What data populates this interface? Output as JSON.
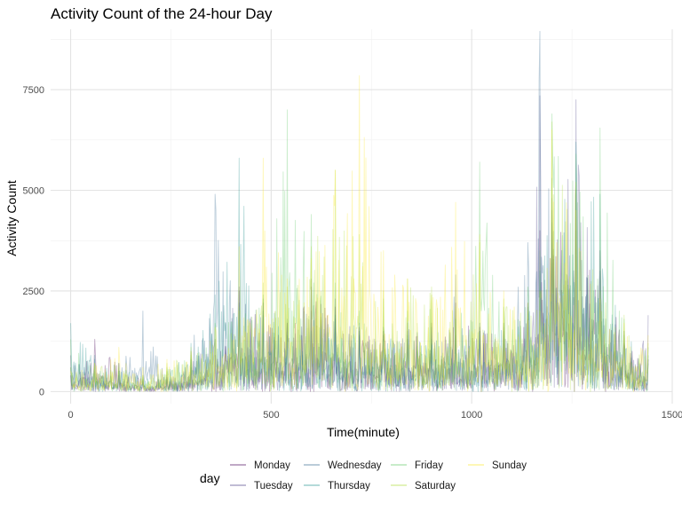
{
  "chart_data": {
    "type": "line",
    "title": "Activity Count of the 24-hour Day",
    "xlabel": "Time(minute)",
    "ylabel": "Activity Count",
    "xlim": [
      -50,
      1500
    ],
    "ylim": [
      -300,
      9000
    ],
    "x_ticks": [
      {
        "value": 0,
        "label": "0"
      },
      {
        "value": 500,
        "label": "500"
      },
      {
        "value": 1000,
        "label": "1000"
      },
      {
        "value": 1500,
        "label": "1500"
      }
    ],
    "y_ticks": [
      {
        "value": 0,
        "label": "0"
      },
      {
        "value": 2500,
        "label": "2500"
      },
      {
        "value": 5000,
        "label": "5000"
      },
      {
        "value": 7500,
        "label": "7500"
      }
    ],
    "grid": true,
    "legend": {
      "title": "day",
      "position": "bottom",
      "rows": 2
    },
    "series": [
      {
        "name": "Monday",
        "color": "#440154",
        "x": [
          0,
          60,
          120,
          180,
          240,
          300,
          360,
          420,
          480,
          540,
          600,
          660,
          720,
          780,
          840,
          900,
          960,
          1020,
          1080,
          1140,
          1170,
          1200,
          1260,
          1320,
          1380,
          1440
        ],
        "values": [
          400,
          1300,
          700,
          300,
          350,
          600,
          900,
          2500,
          2200,
          1700,
          2600,
          2100,
          1600,
          1500,
          1300,
          1700,
          2200,
          1600,
          1500,
          1800,
          4000,
          4500,
          5000,
          3500,
          1200,
          800
        ]
      },
      {
        "name": "Tuesday",
        "color": "#443a83",
        "x": [
          0,
          60,
          120,
          180,
          240,
          300,
          360,
          420,
          480,
          540,
          600,
          660,
          720,
          780,
          840,
          900,
          960,
          1020,
          1080,
          1140,
          1170,
          1200,
          1260,
          1320,
          1380,
          1440
        ],
        "values": [
          900,
          500,
          400,
          250,
          400,
          800,
          1300,
          2600,
          1900,
          1700,
          2000,
          2300,
          1500,
          1400,
          1700,
          1600,
          1400,
          1500,
          1700,
          2200,
          7350,
          4200,
          7250,
          3000,
          1500,
          1900
        ]
      },
      {
        "name": "Wednesday",
        "color": "#31688e",
        "x": [
          0,
          60,
          120,
          180,
          240,
          300,
          360,
          420,
          480,
          540,
          600,
          660,
          720,
          780,
          840,
          900,
          960,
          1020,
          1080,
          1140,
          1170,
          1200,
          1260,
          1320,
          1380,
          1440
        ],
        "values": [
          600,
          800,
          500,
          2000,
          300,
          1000,
          4900,
          2200,
          2000,
          1400,
          2800,
          1800,
          1400,
          1300,
          1500,
          1200,
          2900,
          1700,
          1600,
          3700,
          8950,
          4800,
          4000,
          2200,
          1400,
          700
        ]
      },
      {
        "name": "Thursday",
        "color": "#21908d",
        "x": [
          0,
          60,
          120,
          180,
          240,
          300,
          360,
          420,
          480,
          540,
          600,
          660,
          720,
          780,
          840,
          900,
          960,
          1020,
          1080,
          1140,
          1170,
          1200,
          1260,
          1320,
          1380,
          1440
        ],
        "values": [
          1700,
          900,
          700,
          400,
          500,
          1200,
          2400,
          5800,
          2300,
          1800,
          1500,
          1900,
          1700,
          1600,
          1400,
          1300,
          1800,
          1500,
          1700,
          2100,
          3000,
          5300,
          6200,
          4900,
          1500,
          900
        ]
      },
      {
        "name": "Friday",
        "color": "#5dc863",
        "x": [
          0,
          60,
          120,
          180,
          240,
          300,
          360,
          420,
          480,
          540,
          600,
          660,
          720,
          780,
          840,
          900,
          960,
          1020,
          1080,
          1140,
          1170,
          1200,
          1260,
          1320,
          1380,
          1440
        ],
        "values": [
          1300,
          600,
          500,
          350,
          600,
          900,
          1700,
          2100,
          2400,
          7000,
          4400,
          2700,
          2000,
          2300,
          2000,
          2400,
          1800,
          5700,
          2100,
          2600,
          3500,
          6900,
          5900,
          6550,
          1800,
          1100
        ]
      },
      {
        "name": "Saturday",
        "color": "#aadc32",
        "x": [
          0,
          60,
          120,
          180,
          240,
          300,
          360,
          420,
          480,
          540,
          600,
          660,
          720,
          780,
          840,
          900,
          960,
          1020,
          1080,
          1140,
          1170,
          1200,
          1260,
          1320,
          1380,
          1440
        ],
        "values": [
          600,
          700,
          600,
          400,
          700,
          1100,
          1300,
          2000,
          2700,
          2600,
          3600,
          5500,
          3900,
          2500,
          2800,
          2600,
          2100,
          3700,
          2300,
          2000,
          2500,
          6700,
          5200,
          2500,
          1900,
          1200
        ]
      },
      {
        "name": "Sunday",
        "color": "#fde725",
        "x": [
          0,
          60,
          120,
          180,
          240,
          300,
          360,
          420,
          480,
          540,
          600,
          660,
          720,
          780,
          840,
          900,
          960,
          1020,
          1080,
          1140,
          1170,
          1200,
          1260,
          1320,
          1380,
          1440
        ],
        "values": [
          500,
          700,
          1100,
          600,
          800,
          1000,
          1600,
          3600,
          5800,
          2800,
          3300,
          5500,
          7850,
          3500,
          2800,
          2400,
          4700,
          3900,
          2500,
          2200,
          2000,
          6500,
          4500,
          2300,
          1700,
          1400
        ]
      }
    ]
  }
}
